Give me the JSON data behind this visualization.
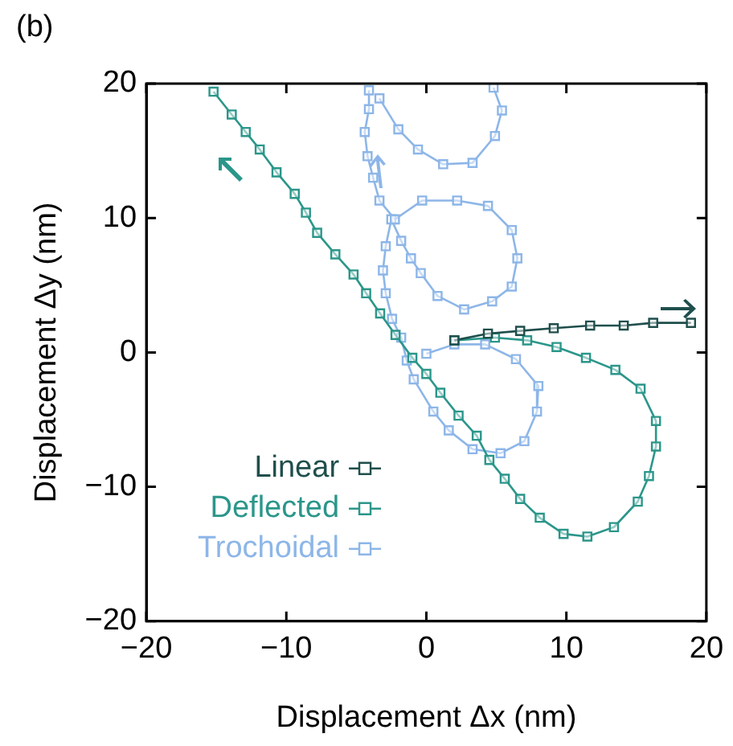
{
  "chart_data": {
    "type": "line",
    "title": "(b)",
    "xlabel": "Displacement Δx (nm)",
    "ylabel": "Displacement Δy (nm)",
    "xlim": [
      -20,
      20
    ],
    "ylim": [
      -20,
      20
    ],
    "xticks": [
      -20,
      -10,
      0,
      10,
      20
    ],
    "yticks": [
      -20,
      -10,
      0,
      10,
      20
    ],
    "grid": false,
    "legend": "bottom left",
    "marker": "square",
    "line_style": "solid",
    "series": [
      {
        "name": "Linear",
        "color": "#1f4f4c",
        "x": [
          2.0,
          4.4,
          6.7,
          9.1,
          11.7,
          14.1,
          16.2,
          18.9
        ],
        "values": [
          0.9,
          1.4,
          1.6,
          1.8,
          2.0,
          2.0,
          2.2,
          2.2
        ]
      },
      {
        "name": "Deflected",
        "color": "#2b968a",
        "x": [
          2.0,
          4.9,
          7.2,
          9.3,
          11.4,
          13.5,
          15.3,
          16.4,
          16.4,
          15.9,
          15.1,
          13.4,
          11.5,
          9.8,
          8.1,
          6.7,
          5.6,
          4.5,
          3.6,
          2.3,
          1.0,
          0.0,
          -1.0,
          -2.2,
          -3.3,
          -4.3,
          -5.2,
          -6.5,
          -7.8,
          -8.6,
          -9.4,
          -10.7,
          -11.9,
          -12.9,
          -13.9,
          -15.2
        ],
        "values": [
          0.9,
          1.1,
          0.9,
          0.4,
          -0.4,
          -1.3,
          -2.7,
          -5.1,
          -7.0,
          -9.2,
          -11.1,
          -13.0,
          -13.7,
          -13.5,
          -12.3,
          -10.9,
          -9.4,
          -8.0,
          -6.2,
          -4.7,
          -3.0,
          -1.6,
          -0.4,
          1.3,
          2.9,
          4.4,
          5.8,
          7.3,
          8.9,
          10.4,
          11.8,
          13.4,
          15.1,
          16.4,
          17.7,
          19.4
        ]
      },
      {
        "name": "Trochoidal",
        "color": "#8db6e8",
        "x": [
          0.0,
          2.0,
          4.2,
          6.4,
          8.0,
          7.9,
          7.0,
          5.3,
          3.3,
          1.6,
          0.5,
          -0.9,
          -1.4,
          -1.8,
          -2.45,
          -2.9,
          -3.1,
          -2.9,
          -2.5,
          -1.8,
          -1.1,
          -0.4,
          0.8,
          2.7,
          4.7,
          6.1,
          6.5,
          6.1,
          4.4,
          2.2,
          -0.3,
          -2.25,
          -3.35,
          -3.8,
          -4.2,
          -4.4,
          -4.1,
          -4.1,
          null,
          -3.35,
          -2.0,
          -0.6,
          1.2,
          3.3,
          4.9,
          5.4,
          4.8
        ],
        "values": [
          -0.1,
          0.6,
          0.6,
          -0.5,
          -2.5,
          -4.4,
          -6.6,
          -7.5,
          -7.2,
          -5.8,
          -4.4,
          -2.0,
          -0.6,
          1.1,
          2.5,
          4.4,
          6.1,
          7.9,
          9.9,
          8.3,
          7.0,
          5.9,
          4.2,
          3.2,
          3.8,
          4.9,
          7.0,
          9.1,
          10.9,
          11.3,
          11.3,
          9.9,
          11.3,
          13.0,
          14.6,
          16.4,
          18.1,
          19.5,
          null,
          18.9,
          16.6,
          15.1,
          14.0,
          14.1,
          16.1,
          18.0,
          19.7
        ]
      }
    ]
  }
}
